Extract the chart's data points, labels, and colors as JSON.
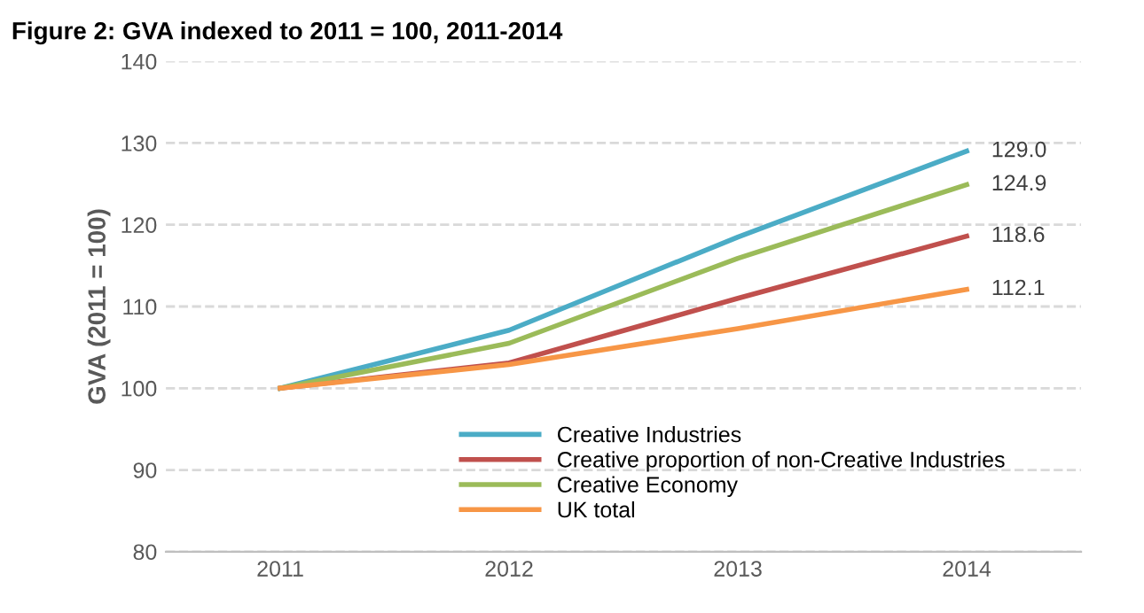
{
  "chart_data": {
    "type": "line",
    "title": "Figure 2: GVA indexed to 2011 = 100, 2011-2014",
    "ylabel": "GVA (2011 = 100)",
    "categories": [
      "2011",
      "2012",
      "2013",
      "2014"
    ],
    "series": [
      {
        "name": "Creative Industries",
        "color": "#4bacc6",
        "values": [
          100,
          107.1,
          118.5,
          129.0
        ],
        "value_labels": [
          null,
          null,
          null,
          "129.0"
        ]
      },
      {
        "name": "Creative proportion of non-Creative Industries",
        "color": "#c0504d",
        "values": [
          100,
          103.1,
          111.0,
          118.6
        ],
        "value_labels": [
          null,
          null,
          null,
          "118.6"
        ]
      },
      {
        "name": "Creative Economy",
        "color": "#9bbb59",
        "values": [
          100,
          105.5,
          115.9,
          124.9
        ],
        "value_labels": [
          null,
          null,
          null,
          "124.9"
        ]
      },
      {
        "name": "UK total",
        "color": "#f79646",
        "values": [
          100,
          102.9,
          107.3,
          112.1
        ],
        "value_labels": [
          null,
          null,
          null,
          "112.1"
        ]
      }
    ],
    "ylim": [
      80,
      140
    ],
    "yticks": [
      80,
      90,
      100,
      110,
      120,
      130,
      140
    ],
    "grid": "y",
    "legend": "bottom",
    "marker": "none",
    "line_style": "solid"
  }
}
